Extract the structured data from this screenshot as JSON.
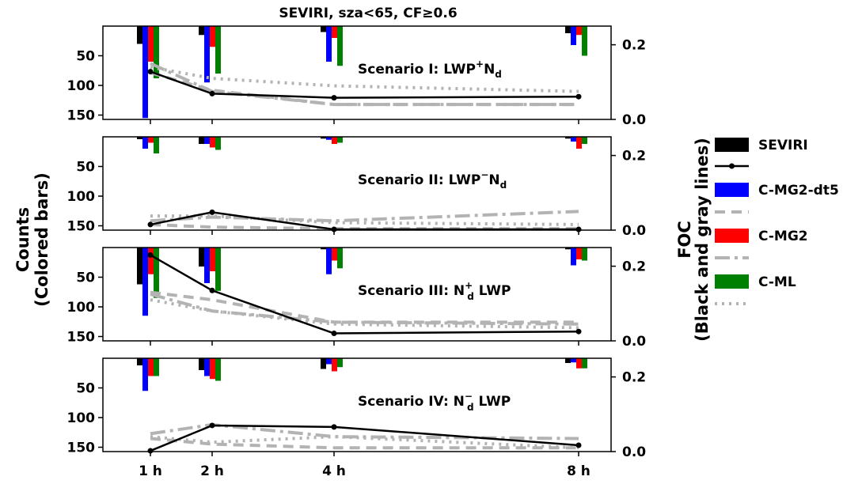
{
  "title": "SEVIRI, sza<65, CF≥0.6",
  "left_axis": {
    "line1": "Counts",
    "line2": "(Colored bars)"
  },
  "right_axis": {
    "line1": "FOC",
    "line2": "(Black and gray lines)"
  },
  "x_ticks": [
    "1 h",
    "2 h",
    "4 h",
    "8 h"
  ],
  "legend": [
    {
      "label": "SEVIRI",
      "swatch": "bar",
      "color": "#000000"
    },
    {
      "label": "",
      "swatch": "line-marker",
      "color": "#000000"
    },
    {
      "label": "C-MG2-dt5",
      "swatch": "bar",
      "color": "#0000ff"
    },
    {
      "label": "",
      "swatch": "dashed",
      "color": "#b3b3b3"
    },
    {
      "label": "C-MG2",
      "swatch": "bar",
      "color": "#ff0000"
    },
    {
      "label": "",
      "swatch": "dashdot",
      "color": "#b3b3b3"
    },
    {
      "label": "C-ML",
      "swatch": "bar",
      "color": "#008000"
    },
    {
      "label": "",
      "swatch": "dotted",
      "color": "#b3b3b3"
    }
  ],
  "chart_data": {
    "type": "bar",
    "x": [
      1,
      2,
      4,
      8
    ],
    "categories": [
      "1 h",
      "2 h",
      "4 h",
      "8 h"
    ],
    "colors": {
      "SEVIRI": "#000000",
      "C-MG2-dt5": "#0000ff",
      "C-MG2": "#ff0000",
      "C-ML": "#008000",
      "gray": "#b3b3b3"
    },
    "left_yticks": [
      50,
      100,
      150
    ],
    "right_yticks": [
      "0.0",
      "0.2"
    ],
    "right_ylim": [
      0,
      0.25
    ],
    "panels": [
      {
        "label": "Scenario I: LWP",
        "label_sup": "+",
        "label_tail": "N",
        "label_sub": "d",
        "label_after": "",
        "counts": {
          "SEVIRI": [
            30,
            15,
            10,
            12
          ],
          "C-MG2-dt5": [
            155,
            95,
            60,
            32
          ],
          "C-MG2": [
            60,
            35,
            20,
            15
          ],
          "C-ML": [
            88,
            80,
            67,
            50
          ]
        },
        "foc": {
          "SEVIRI": [
            0.128,
            0.069,
            0.058,
            0.061
          ],
          "C-MG2-dt5": [
            0.125,
            0.078,
            0.04,
            0.04
          ],
          "C-MG2": [
            0.15,
            0.075,
            0.04,
            0.04
          ],
          "C-ML": [
            0.14,
            0.11,
            0.09,
            0.075
          ]
        }
      },
      {
        "label": "Scenario II: LWP",
        "label_sup": "−",
        "label_tail": "N",
        "label_sub": "d",
        "label_after": "",
        "counts": {
          "SEVIRI": [
            4,
            12,
            3,
            3
          ],
          "C-MG2-dt5": [
            20,
            12,
            5,
            8
          ],
          "C-MG2": [
            10,
            18,
            12,
            20
          ],
          "C-ML": [
            28,
            22,
            10,
            12
          ]
        },
        "foc": {
          "SEVIRI": [
            0.015,
            0.048,
            0.002,
            0.002
          ],
          "C-MG2-dt5": [
            0.015,
            0.008,
            0.004,
            0.004
          ],
          "C-MG2": [
            0.025,
            0.035,
            0.025,
            0.05
          ],
          "C-ML": [
            0.038,
            0.038,
            0.02,
            0.015
          ]
        }
      },
      {
        "label": "Scenario III: N",
        "label_sup": "+",
        "label_tail": "",
        "label_sub": "d",
        "label_after": "LWP",
        "counts": {
          "SEVIRI": [
            62,
            32,
            3,
            3
          ],
          "C-MG2-dt5": [
            115,
            60,
            45,
            30
          ],
          "C-MG2": [
            45,
            40,
            22,
            20
          ],
          "C-ML": [
            85,
            73,
            35,
            22
          ]
        },
        "foc": {
          "SEVIRI": [
            0.23,
            0.135,
            0.02,
            0.025
          ],
          "C-MG2-dt5": [
            0.13,
            0.11,
            0.05,
            0.05
          ],
          "C-MG2": [
            0.125,
            0.08,
            0.05,
            0.045
          ],
          "C-ML": [
            0.11,
            0.08,
            0.045,
            0.035
          ]
        }
      },
      {
        "label": "Scenario IV: N",
        "label_sup": "−",
        "label_tail": "",
        "label_sub": "d",
        "label_after": "LWP",
        "counts": {
          "SEVIRI": [
            12,
            20,
            18,
            8
          ],
          "C-MG2-dt5": [
            55,
            30,
            10,
            7
          ],
          "C-MG2": [
            30,
            35,
            22,
            17
          ],
          "C-ML": [
            30,
            38,
            15,
            17
          ]
        },
        "foc": {
          "SEVIRI": [
            0.002,
            0.07,
            0.066,
            0.017
          ],
          "C-MG2-dt5": [
            0.035,
            0.02,
            0.01,
            0.01
          ],
          "C-MG2": [
            0.048,
            0.072,
            0.04,
            0.035
          ],
          "C-ML": [
            0.04,
            0.025,
            0.04,
            0.01
          ]
        }
      }
    ]
  }
}
